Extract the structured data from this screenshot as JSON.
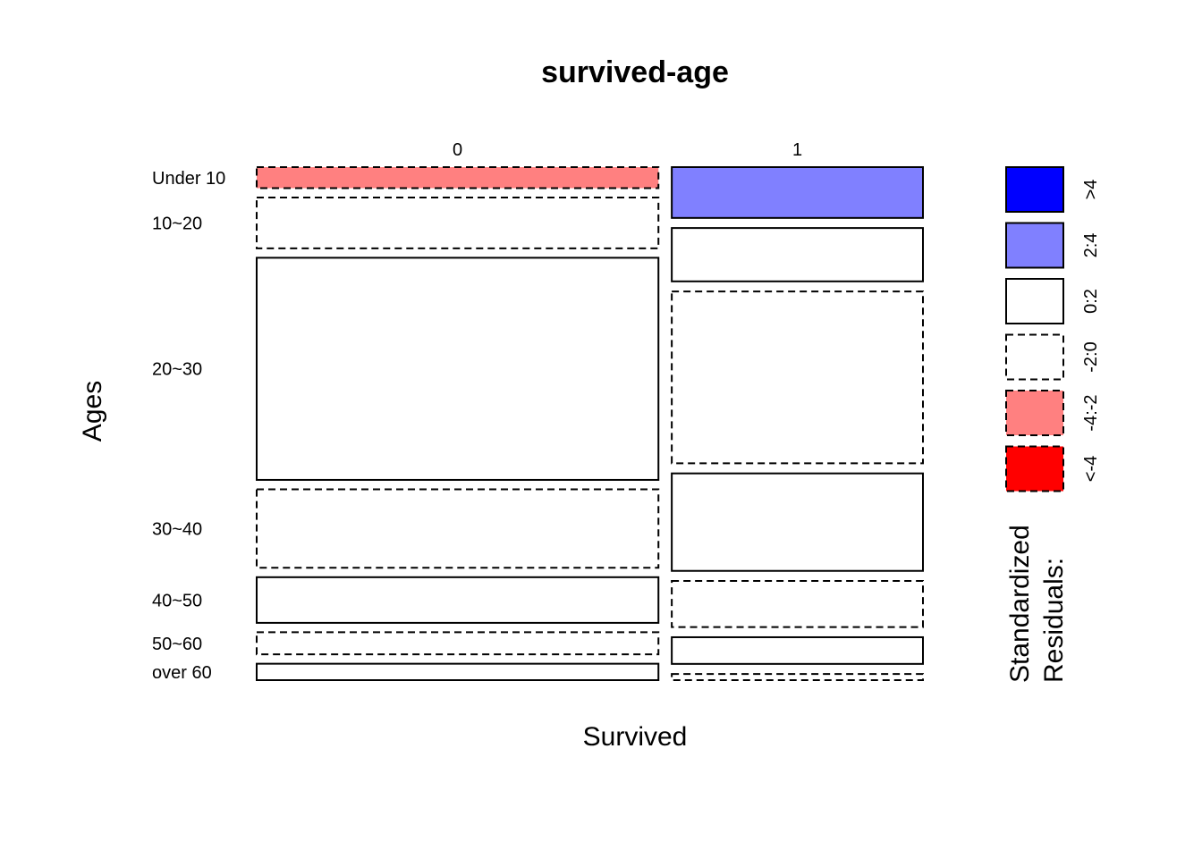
{
  "chart_data": {
    "type": "mosaic",
    "title": "survived-age",
    "xlabel": "Survived",
    "ylabel": "Ages",
    "columns": [
      {
        "label": "0",
        "width_share": 0.603
      },
      {
        "label": "1",
        "width_share": 0.377
      }
    ],
    "rows": [
      "Under 10",
      "10~20",
      "20~30",
      "30~40",
      "40~50",
      "50~60",
      "over 60"
    ],
    "cells": [
      {
        "column": "0",
        "row": "Under 10",
        "share": 0.041,
        "residual_class": "-4:-2"
      },
      {
        "column": "0",
        "row": "10~20",
        "share": 0.099,
        "residual_class": "-2:0"
      },
      {
        "column": "0",
        "row": "20~30",
        "share": 0.433,
        "residual_class": "0:2"
      },
      {
        "column": "0",
        "row": "30~40",
        "share": 0.153,
        "residual_class": "-2:0"
      },
      {
        "column": "0",
        "row": "40~50",
        "share": 0.089,
        "residual_class": "0:2"
      },
      {
        "column": "0",
        "row": "50~60",
        "share": 0.043,
        "residual_class": "-2:0"
      },
      {
        "column": "0",
        "row": "over 60",
        "share": 0.032,
        "residual_class": "0:2"
      },
      {
        "column": "1",
        "row": "Under 10",
        "share": 0.099,
        "residual_class": "2:4"
      },
      {
        "column": "1",
        "row": "10~20",
        "share": 0.104,
        "residual_class": "0:2"
      },
      {
        "column": "1",
        "row": "20~30",
        "share": 0.335,
        "residual_class": "-2:0"
      },
      {
        "column": "1",
        "row": "30~40",
        "share": 0.19,
        "residual_class": "0:2"
      },
      {
        "column": "1",
        "row": "40~50",
        "share": 0.09,
        "residual_class": "-2:0"
      },
      {
        "column": "1",
        "row": "50~60",
        "share": 0.052,
        "residual_class": "0:2"
      },
      {
        "column": "1",
        "row": "over 60",
        "share": 0.012,
        "residual_class": "-2:0"
      }
    ],
    "legend": {
      "title_lines": [
        "Standardized",
        "Residuals:"
      ],
      "placement": "right",
      "entries": [
        {
          "label": ">4",
          "fill": "#0000FF",
          "dashed": false
        },
        {
          "label": "2:4",
          "fill": "#8080FF",
          "dashed": false
        },
        {
          "label": "0:2",
          "fill": "#FFFFFF",
          "dashed": false
        },
        {
          "label": "-2:0",
          "fill": "#FFFFFF",
          "dashed": true
        },
        {
          "label": "-4:-2",
          "fill": "#FF8080",
          "dashed": true
        },
        {
          "label": "<-4",
          "fill": "#FF0000",
          "dashed": true
        }
      ]
    }
  }
}
